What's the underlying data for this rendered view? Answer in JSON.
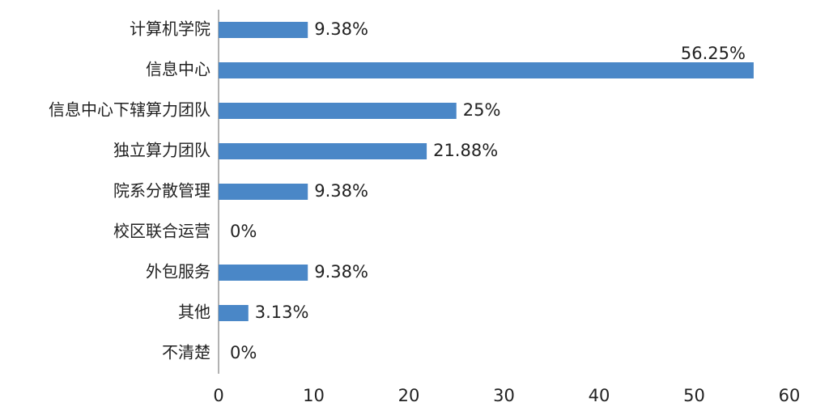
{
  "chart_data": {
    "type": "bar",
    "orientation": "horizontal",
    "categories": [
      "计算机学院",
      "信息中心",
      "信息中心下辖算力团队",
      "独立算力团队",
      "院系分散管理",
      "校区联合运营",
      "外包服务",
      "其他",
      "不清楚"
    ],
    "values": [
      9.38,
      56.25,
      25,
      21.88,
      9.38,
      0,
      9.38,
      3.13,
      0
    ],
    "value_labels": [
      "9.38%",
      "56.25%",
      "25%",
      "21.88%",
      "9.38%",
      "0%",
      "9.38%",
      "3.13%",
      "0%"
    ],
    "color": "#4a87c7",
    "xlim": [
      0,
      60
    ],
    "xticks": [
      0,
      10,
      20,
      30,
      40,
      50,
      60
    ],
    "grid": false
  }
}
